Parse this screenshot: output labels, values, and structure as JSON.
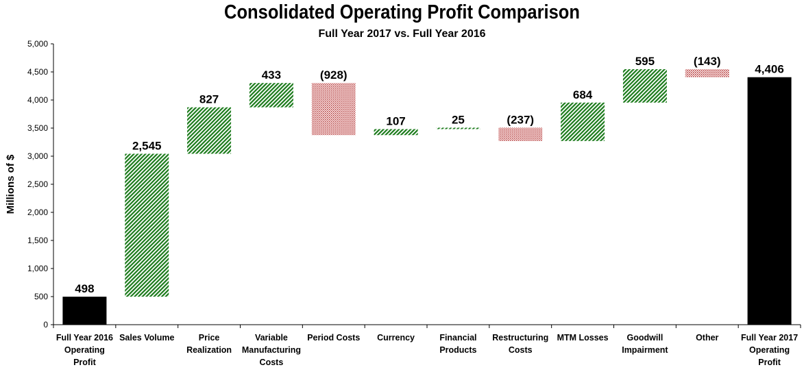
{
  "chart_data": {
    "type": "waterfall",
    "title": "Consolidated Operating Profit Comparison",
    "subtitle": "Full Year 2017 vs. Full Year 2016",
    "ylabel": "Millions of $",
    "xlabel": "",
    "ylim": [
      0,
      5000
    ],
    "yticks": [
      "0",
      "500",
      "1,000",
      "1,500",
      "2,000",
      "2,500",
      "3,000",
      "3,500",
      "4,000",
      "4,500",
      "5,000"
    ],
    "grid": false,
    "categories": [
      [
        "Full Year 2016",
        "Operating",
        "Profit"
      ],
      [
        "Sales Volume"
      ],
      [
        "Price",
        "Realization"
      ],
      [
        "Variable",
        "Manufacturing",
        "Costs"
      ],
      [
        "Period Costs"
      ],
      [
        "Currency"
      ],
      [
        "Financial",
        "Products"
      ],
      [
        "Restructuring",
        "Costs"
      ],
      [
        "MTM Losses"
      ],
      [
        "Goodwill",
        "Impairment"
      ],
      [
        "Other"
      ],
      [
        "Full Year 2017",
        "Operating",
        "Profit"
      ]
    ],
    "values": [
      498,
      2545,
      827,
      433,
      -928,
      107,
      25,
      -237,
      684,
      595,
      -143,
      4406
    ],
    "kinds": [
      "total",
      "delta",
      "delta",
      "delta",
      "delta",
      "delta",
      "delta",
      "delta",
      "delta",
      "delta",
      "delta",
      "total"
    ],
    "labels": [
      "498",
      "2,545",
      "827",
      "433",
      "(928)",
      "107",
      "25",
      "(237)",
      "684",
      "595",
      "(143)",
      "4,406"
    ],
    "colors": {
      "total": "#000000",
      "increase": "#1a7a1a",
      "decrease": "#b03030"
    }
  }
}
